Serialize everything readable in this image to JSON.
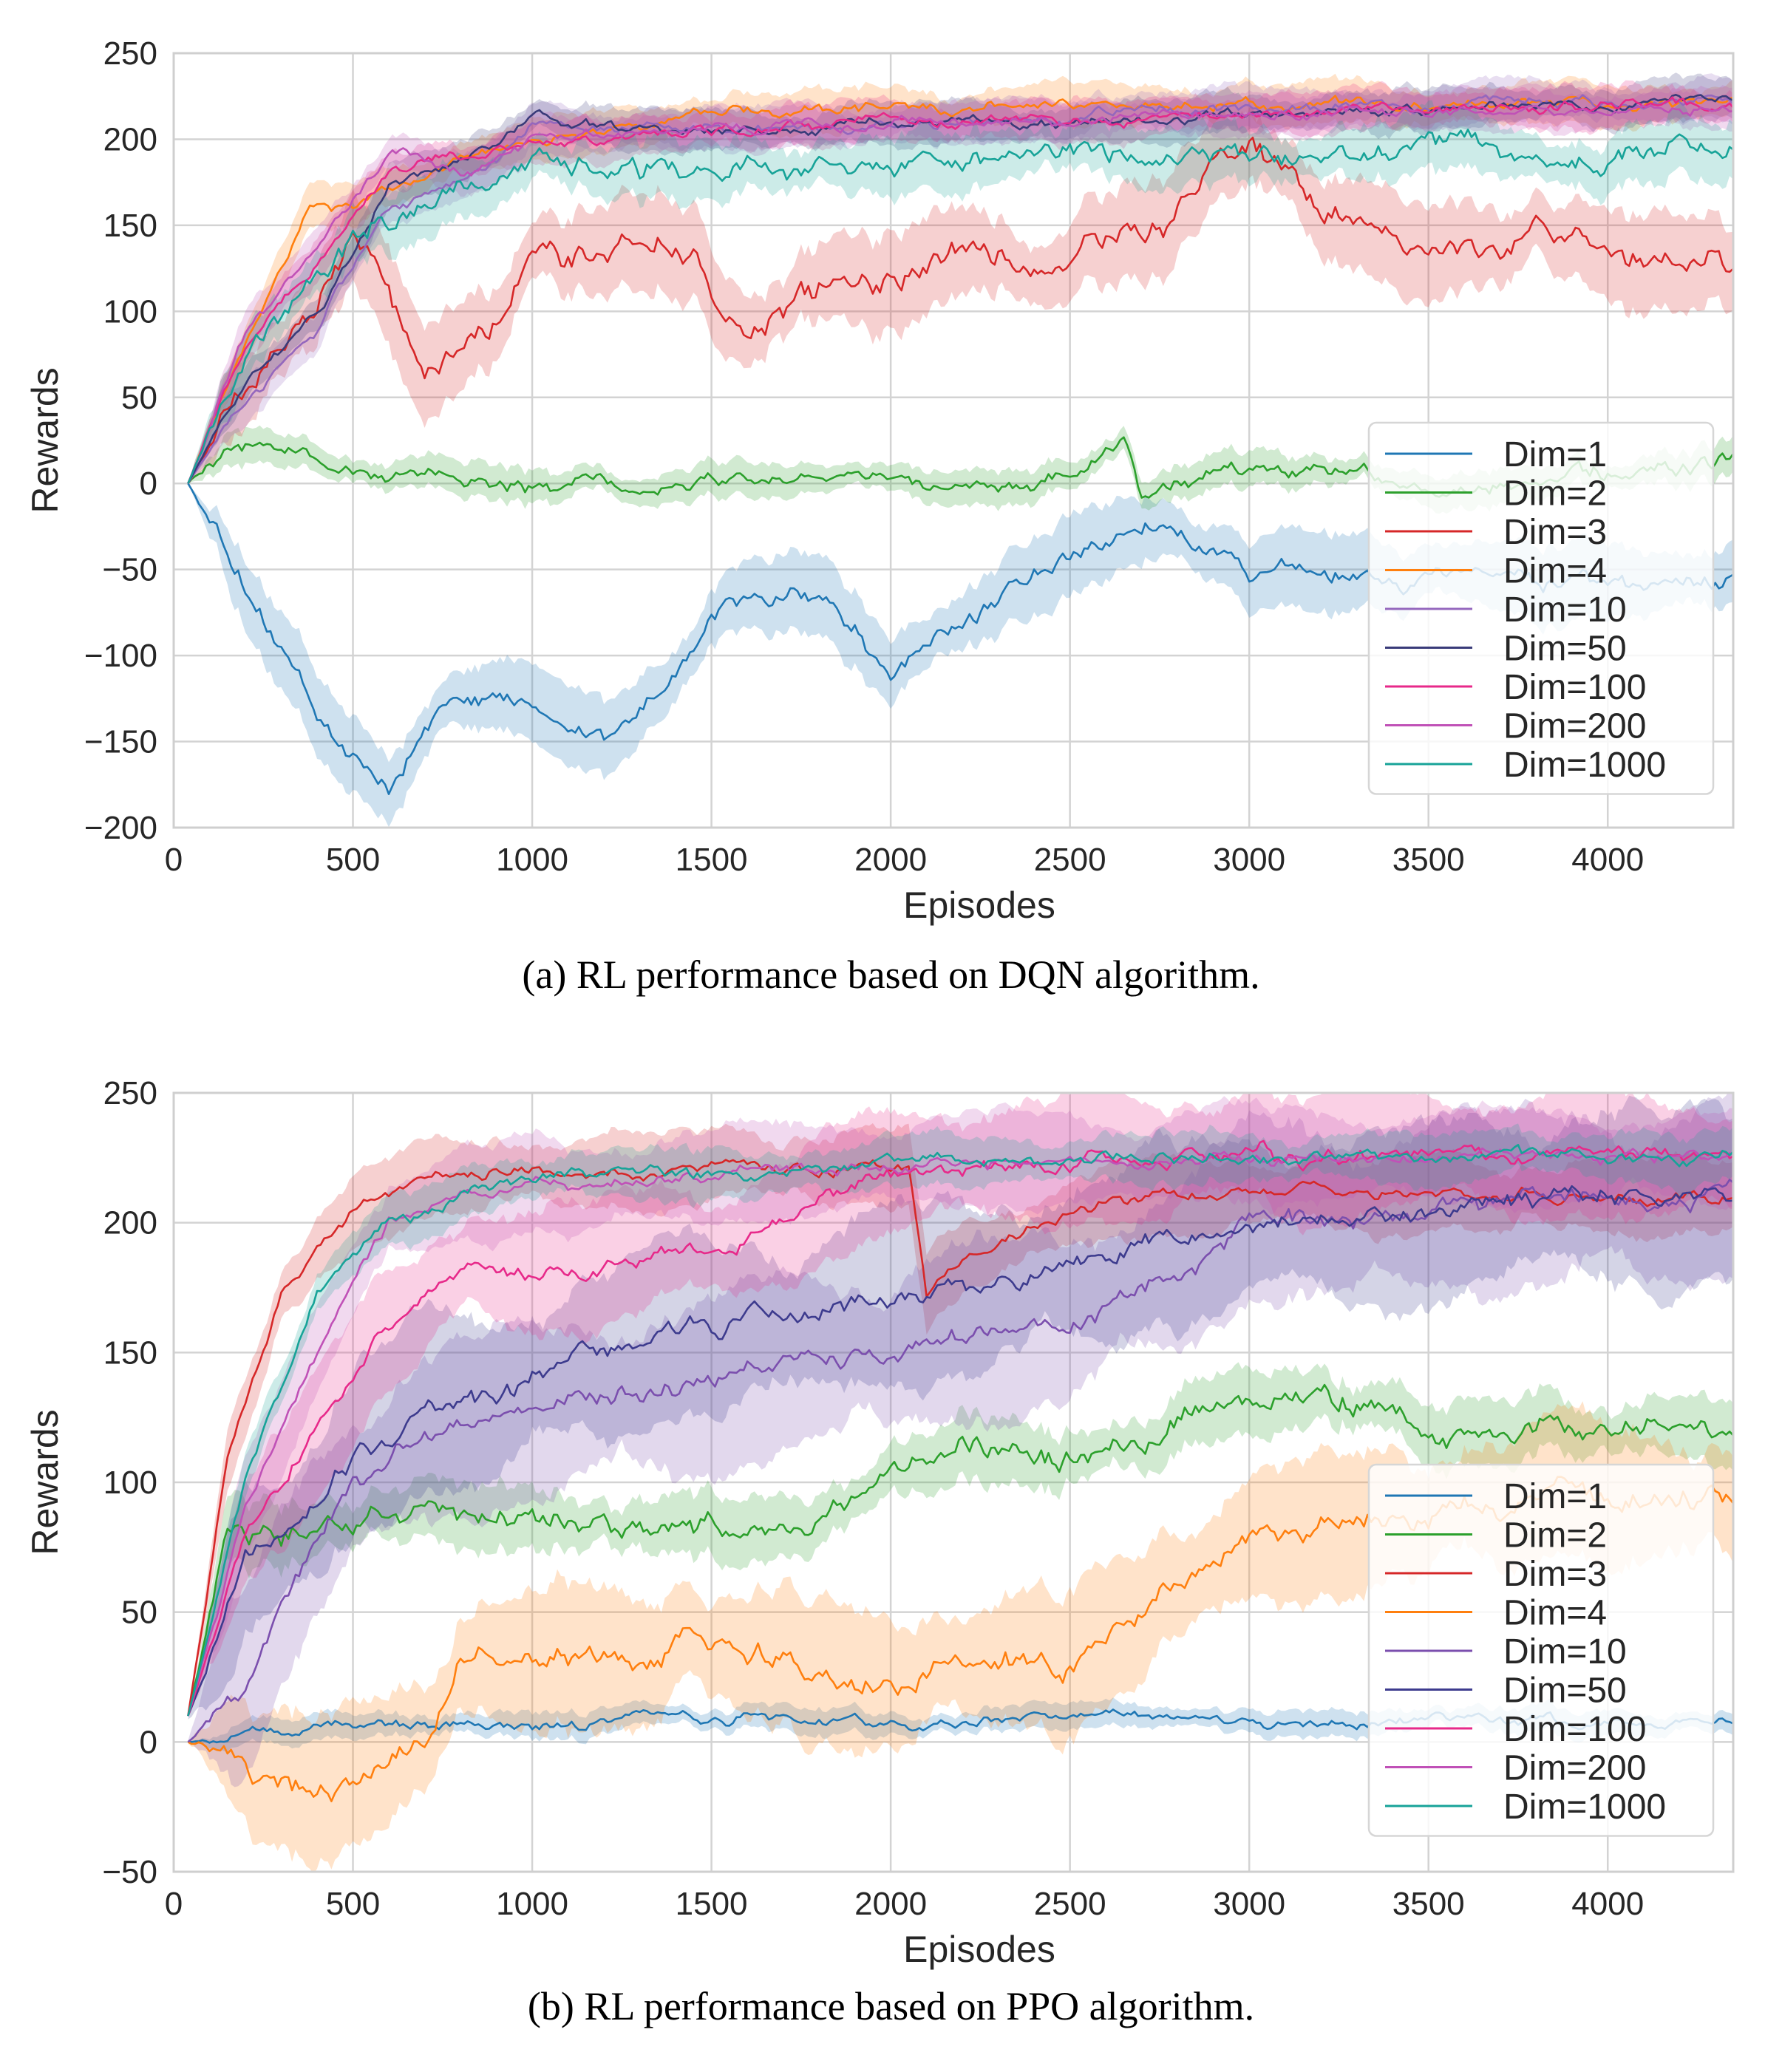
{
  "figure": {
    "caption_a": "(a) RL performance based on DQN algorithm.",
    "caption_b": "(b) RL performance based on PPO algorithm."
  },
  "chart_data": [
    {
      "id": "dqn",
      "type": "line",
      "xlabel": "Episodes",
      "ylabel": "Rewards",
      "xlim": [
        0,
        4350
      ],
      "ylim": [
        -200,
        250
      ],
      "xticks": [
        0,
        500,
        1000,
        1500,
        2000,
        2500,
        3000,
        3500,
        4000
      ],
      "yticks": [
        -200,
        -150,
        -100,
        -50,
        0,
        50,
        100,
        150,
        200,
        250
      ],
      "grid": true,
      "legend_placement": "lower-right",
      "shaded_band": "variance",
      "series": [
        {
          "name": "Dim=1",
          "color": "#1f77b4",
          "band": 18,
          "noise": 7,
          "x": [
            40,
            200,
            400,
            500,
            600,
            700,
            800,
            1000,
            1200,
            1400,
            1500,
            1800,
            2000,
            2200,
            2500,
            2750,
            3000,
            3300,
            3500,
            4000,
            4350
          ],
          "y": [
            0,
            -60,
            -130,
            -160,
            -180,
            -140,
            -120,
            -130,
            -150,
            -110,
            -70,
            -60,
            -110,
            -80,
            -40,
            -20,
            -50,
            -55,
            -50,
            -60,
            -55
          ]
        },
        {
          "name": "Dim=2",
          "color": "#2ca02c",
          "band": 8,
          "noise": 6,
          "x": [
            40,
            150,
            300,
            500,
            800,
            1000,
            1500,
            2000,
            2500,
            2650,
            2700,
            3000,
            3500,
            4000,
            4350
          ],
          "y": [
            0,
            25,
            20,
            5,
            0,
            -2,
            5,
            0,
            2,
            20,
            -10,
            10,
            0,
            5,
            15
          ]
        },
        {
          "name": "Dim=3",
          "color": "#d62728",
          "band": 22,
          "noise": 10,
          "x": [
            40,
            200,
            400,
            500,
            600,
            700,
            900,
            1000,
            1200,
            1400,
            1600,
            1800,
            2000,
            2200,
            2500,
            2800,
            3000,
            3200,
            3500,
            3800,
            4000,
            4350
          ],
          "y": [
            0,
            60,
            110,
            150,
            110,
            60,
            100,
            130,
            130,
            140,
            80,
            110,
            110,
            140,
            130,
            160,
            200,
            160,
            130,
            150,
            140,
            125
          ]
        },
        {
          "name": "Dim=4",
          "color": "#ff7f0e",
          "band": 10,
          "noise": 4,
          "x": [
            40,
            200,
            380,
            500,
            800,
            1000,
            1500,
            2000,
            2500,
            3000,
            4350
          ],
          "y": [
            0,
            80,
            160,
            160,
            190,
            200,
            215,
            218,
            218,
            220,
            220
          ]
        },
        {
          "name": "Dim=10",
          "color": "#9467bd",
          "band": 10,
          "noise": 4,
          "x": [
            40,
            200,
            400,
            600,
            900,
            1000,
            1500,
            2000,
            2500,
            3000,
            4350
          ],
          "y": [
            0,
            50,
            90,
            160,
            190,
            210,
            205,
            208,
            212,
            218,
            222
          ]
        },
        {
          "name": "Dim=50",
          "color": "#393b79",
          "band": 10,
          "noise": 4,
          "x": [
            40,
            200,
            400,
            600,
            900,
            1000,
            1500,
            2000,
            2500,
            3000,
            4350
          ],
          "y": [
            0,
            60,
            100,
            170,
            200,
            210,
            205,
            210,
            210,
            215,
            222
          ]
        },
        {
          "name": "Dim=100",
          "color": "#e7298a",
          "band": 10,
          "noise": 4,
          "x": [
            40,
            200,
            400,
            600,
            800,
            1000,
            1500,
            2000,
            2500,
            3000,
            4350
          ],
          "y": [
            0,
            80,
            130,
            180,
            190,
            200,
            205,
            210,
            212,
            214,
            220
          ]
        },
        {
          "name": "Dim=200",
          "color": "#c051b7",
          "band": 10,
          "noise": 4,
          "x": [
            40,
            200,
            400,
            600,
            800,
            1000,
            1500,
            2000,
            2500,
            3000,
            4350
          ],
          "y": [
            0,
            85,
            140,
            195,
            180,
            200,
            205,
            210,
            212,
            215,
            218
          ]
        },
        {
          "name": "Dim=1000",
          "color": "#17a398",
          "band": 14,
          "noise": 8,
          "x": [
            40,
            200,
            400,
            600,
            800,
            1000,
            1200,
            1500,
            2000,
            2500,
            3000,
            3500,
            4000,
            4350
          ],
          "y": [
            0,
            70,
            120,
            155,
            170,
            185,
            180,
            180,
            185,
            195,
            185,
            200,
            190,
            200
          ]
        }
      ]
    },
    {
      "id": "ppo",
      "type": "line",
      "xlabel": "Episodes",
      "ylabel": "Rewards",
      "xlim": [
        0,
        4350
      ],
      "ylim": [
        -50,
        250
      ],
      "xticks": [
        0,
        500,
        1000,
        1500,
        2000,
        2500,
        3000,
        3500,
        4000
      ],
      "yticks": [
        -50,
        0,
        50,
        100,
        150,
        200,
        250
      ],
      "grid": true,
      "legend_placement": "lower-right",
      "shaded_band": "variance",
      "series": [
        {
          "name": "Dim=1",
          "color": "#1f77b4",
          "band": 4,
          "noise": 2.5,
          "x": [
            40,
            300,
            800,
            1000,
            1500,
            2000,
            2500,
            3000,
            3500,
            4000,
            4350
          ],
          "y": [
            0,
            5,
            8,
            5,
            10,
            8,
            10,
            8,
            8,
            8,
            8
          ]
        },
        {
          "name": "Dim=2",
          "color": "#2ca02c",
          "band": 10,
          "noise": 6,
          "x": [
            40,
            150,
            300,
            600,
            800,
            1000,
            1200,
            1500,
            1800,
            2000,
            2200,
            2500,
            3000,
            3300,
            3500,
            4000,
            4350
          ],
          "y": [
            10,
            80,
            80,
            90,
            85,
            90,
            80,
            80,
            80,
            100,
            110,
            110,
            130,
            130,
            115,
            125,
            120
          ]
        },
        {
          "name": "Dim=3",
          "color": "#d62728",
          "band": 12,
          "noise": 3,
          "x": [
            40,
            150,
            300,
            500,
            700,
            900,
            1500,
            2000,
            2050,
            2100,
            2200,
            2500,
            2800,
            3000,
            3500,
            4000,
            4350
          ],
          "y": [
            10,
            110,
            170,
            205,
            215,
            220,
            220,
            222,
            220,
            170,
            185,
            205,
            210,
            215,
            212,
            210,
            210
          ]
        },
        {
          "name": "Dim=4",
          "color": "#ff7f0e",
          "band": 22,
          "noise": 6,
          "x": [
            40,
            400,
            700,
            800,
            1000,
            1500,
            1800,
            2000,
            2200,
            2500,
            2800,
            3000,
            3300,
            3500,
            4000,
            4350
          ],
          "y": [
            0,
            -20,
            0,
            30,
            30,
            40,
            25,
            20,
            30,
            30,
            60,
            80,
            85,
            90,
            95,
            95
          ]
        },
        {
          "name": "Dim=10",
          "color": "#7b4fae",
          "band": 28,
          "noise": 5,
          "x": [
            40,
            200,
            300,
            500,
            700,
            1000,
            1500,
            2000,
            2500,
            2800,
            3000,
            3500,
            4000,
            4350
          ],
          "y": [
            0,
            20,
            50,
            100,
            120,
            130,
            140,
            150,
            160,
            180,
            200,
            205,
            208,
            210
          ]
        },
        {
          "name": "Dim=50",
          "color": "#3d3b8e",
          "band": 28,
          "noise": 5,
          "x": [
            40,
            200,
            300,
            500,
            700,
            1000,
            1500,
            2000,
            2500,
            3000,
            3500,
            4000,
            4350
          ],
          "y": [
            10,
            70,
            80,
            110,
            125,
            140,
            160,
            170,
            185,
            200,
            205,
            210,
            210
          ]
        },
        {
          "name": "Dim=100",
          "color": "#e7298a",
          "band": 20,
          "noise": 4,
          "x": [
            40,
            200,
            400,
            600,
            800,
            1000,
            1500,
            1800,
            2000,
            2500,
            3000,
            4350
          ],
          "y": [
            10,
            80,
            120,
            160,
            180,
            180,
            190,
            210,
            220,
            224,
            225,
            226
          ]
        },
        {
          "name": "Dim=200",
          "color": "#c051b7",
          "band": 15,
          "noise": 3,
          "x": [
            40,
            200,
            400,
            600,
            800,
            1000,
            1500,
            2000,
            2500,
            3000,
            4350
          ],
          "y": [
            10,
            90,
            150,
            200,
            210,
            215,
            218,
            222,
            224,
            225,
            226
          ]
        },
        {
          "name": "Dim=1000",
          "color": "#17a398",
          "band": 8,
          "noise": 3,
          "x": [
            40,
            200,
            400,
            600,
            800,
            1000,
            1500,
            2000,
            2500,
            3000,
            4350
          ],
          "y": [
            10,
            100,
            170,
            200,
            210,
            218,
            220,
            222,
            224,
            225,
            225
          ]
        }
      ]
    }
  ]
}
